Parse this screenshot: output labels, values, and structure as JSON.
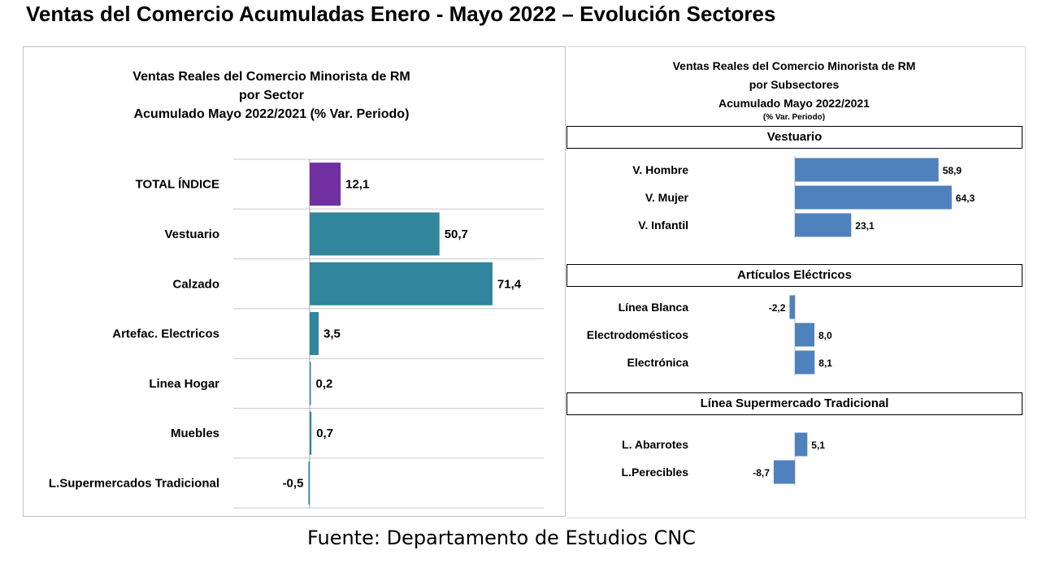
{
  "main_title": "Ventas del Comercio Acumuladas Enero - Mayo 2022 – Evolución Sectores",
  "footer": "Fuente: Departamento de Estudios CNC",
  "colors": {
    "total": "#7030a0",
    "sector": "#31859c",
    "subsector": "#4f81bd"
  },
  "chart_data": [
    {
      "type": "bar",
      "orientation": "horizontal",
      "title_lines": [
        "Ventas Reales del Comercio Minorista de RM",
        "por Sector",
        "Acumulado Mayo 2022/2021 (% Var. Periodo)"
      ],
      "categories": [
        "TOTAL ÍNDICE",
        "Vestuario",
        "Calzado",
        "Artefac. Electricos",
        "Linea Hogar",
        "Muebles",
        "L.Supermercados Tradicional"
      ],
      "values": [
        12.1,
        50.7,
        71.4,
        3.5,
        0.2,
        0.7,
        -0.5
      ],
      "labels": [
        "12,1",
        "50,7",
        "71,4",
        "3,5",
        "0,2",
        "0,7",
        "-0,5"
      ],
      "grid": true
    },
    {
      "type": "bar",
      "orientation": "horizontal",
      "title_lines": [
        "Ventas Reales del Comercio Minorista de RM",
        "por Subsectores",
        "Acumulado Mayo 2022/2021"
      ],
      "subtitle": "(% Var. Periodo)",
      "groups": [
        {
          "name": "Vestuario",
          "categories": [
            "V. Hombre",
            "V. Mujer",
            "V. Infantil"
          ],
          "values": [
            58.9,
            64.3,
            23.1
          ],
          "labels": [
            "58,9",
            "64,3",
            "23,1"
          ]
        },
        {
          "name": "Artículos Eléctricos",
          "categories": [
            "Línea Blanca",
            "Electrodomésticos",
            "Electrónica"
          ],
          "values": [
            -2.2,
            8.0,
            8.1
          ],
          "labels": [
            "-2,2",
            "8,0",
            "8,1"
          ]
        },
        {
          "name": "Línea  Supermercado Tradicional",
          "categories": [
            "L. Abarrotes",
            "L.Perecibles"
          ],
          "values": [
            5.1,
            -8.7
          ],
          "labels": [
            "5,1",
            "-8,7"
          ]
        }
      ],
      "grid": false
    }
  ]
}
